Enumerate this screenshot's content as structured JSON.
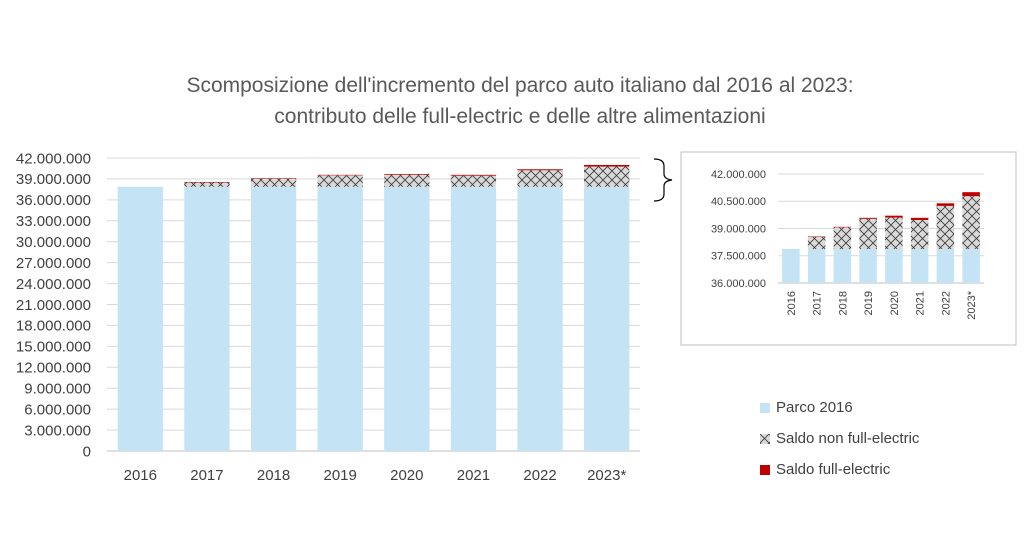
{
  "chart_data": [
    {
      "type": "bar",
      "stacked": true,
      "title": "Scomposizione dell'incremento del parco auto italiano dal 2016 al 2023:",
      "subtitle": "contributo delle full-electric e delle altre alimentazioni",
      "categories": [
        "2016",
        "2017",
        "2018",
        "2019",
        "2020",
        "2021",
        "2022",
        "2023*"
      ],
      "series": [
        {
          "name": "Parco 2016",
          "color": "#c4e3f5",
          "pattern": "solid",
          "values": [
            37876000,
            37876000,
            37876000,
            37876000,
            37876000,
            37876000,
            37876000,
            37876000
          ]
        },
        {
          "name": "Saldo non full-electric",
          "color": "#d9d9d9",
          "pattern": "crosshatch",
          "values": [
            0,
            673000,
            1195000,
            1658000,
            1730000,
            1593000,
            2367000,
            2904000
          ]
        },
        {
          "name": "Saldo full-electric",
          "color": "#c00000",
          "pattern": "solid",
          "values": [
            0,
            10000,
            22000,
            54000,
            99000,
            118000,
            143000,
            220000
          ]
        }
      ],
      "ylim": [
        0,
        42000000
      ],
      "yticks": [
        "42.000.000",
        "39.000.000",
        "36.000.000",
        "33.000.000",
        "30.000.000",
        "27.000.000",
        "24.000.000",
        "21.000.000",
        "18.000.000",
        "15.000.000",
        "12.000.000",
        "9.000.000",
        "6.000.000",
        "3.000.000",
        "0"
      ],
      "grid": true
    },
    {
      "type": "bar",
      "stacked": true,
      "inset": true,
      "categories": [
        "2016",
        "2017",
        "2018",
        "2019",
        "2020",
        "2021",
        "2022",
        "2023*"
      ],
      "ylim": [
        36000000,
        42000000
      ],
      "yticks": [
        "42.000.000",
        "40.500.000",
        "39.000.000",
        "37.500.000",
        "36.000.000"
      ],
      "grid": true
    }
  ],
  "legend": {
    "position": "bottom-right",
    "items": [
      {
        "label": "Parco 2016",
        "color": "#c4e3f5",
        "pattern": "solid"
      },
      {
        "label": "Saldo non full-electric",
        "color": "#d9d9d9",
        "pattern": "crosshatch"
      },
      {
        "label": "Saldo full-electric",
        "color": "#c00000",
        "pattern": "solid"
      }
    ]
  }
}
